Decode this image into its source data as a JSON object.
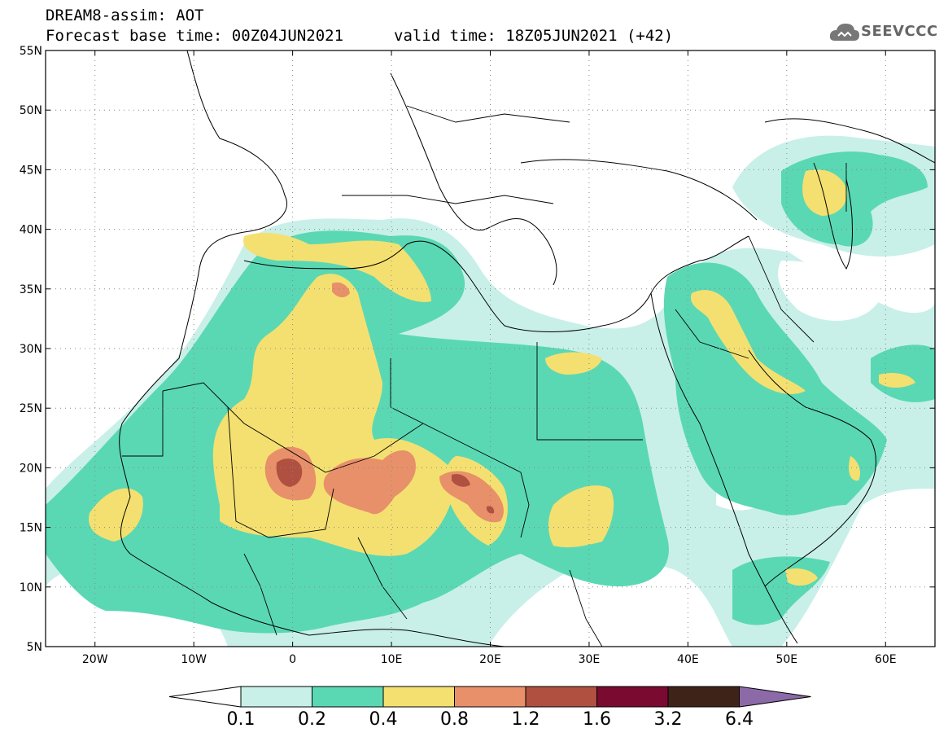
{
  "header": {
    "title": "DREAM8-assim: AOT",
    "base_time": "Forecast base time: 00Z04JUN2021",
    "valid_time": "valid time: 18Z05JUN2021 (+42)",
    "logo_text": "SEEVCCC"
  },
  "map": {
    "lon_range": [
      -25,
      65
    ],
    "lat_range": [
      5,
      55
    ],
    "lon_ticks": [
      {
        "value": -20,
        "label": "20W"
      },
      {
        "value": -10,
        "label": "10W"
      },
      {
        "value": 0,
        "label": "0"
      },
      {
        "value": 10,
        "label": "10E"
      },
      {
        "value": 20,
        "label": "20E"
      },
      {
        "value": 30,
        "label": "30E"
      },
      {
        "value": 40,
        "label": "40E"
      },
      {
        "value": 50,
        "label": "50E"
      },
      {
        "value": 60,
        "label": "60E"
      }
    ],
    "lat_ticks": [
      {
        "value": 55,
        "label": "55N"
      },
      {
        "value": 50,
        "label": "50N"
      },
      {
        "value": 45,
        "label": "45N"
      },
      {
        "value": 40,
        "label": "40N"
      },
      {
        "value": 35,
        "label": "35N"
      },
      {
        "value": 30,
        "label": "30N"
      },
      {
        "value": 25,
        "label": "25N"
      },
      {
        "value": 20,
        "label": "20N"
      },
      {
        "value": 15,
        "label": "15N"
      },
      {
        "value": 10,
        "label": "10N"
      },
      {
        "value": 5,
        "label": "5N"
      }
    ]
  },
  "colorbar": {
    "levels": [
      "0.1",
      "0.2",
      "0.4",
      "0.8",
      "1.2",
      "1.6",
      "3.2",
      "6.4"
    ],
    "colors": [
      "#c8f0e8",
      "#5ad8b4",
      "#f4e070",
      "#e8906a",
      "#b05040",
      "#7a0a30",
      "#3e2418"
    ],
    "under_color": "#ffffff",
    "over_color": "#8c6aa8"
  },
  "colors": {
    "c01": "#c8f0e8",
    "c02": "#5ad8b4",
    "c04": "#f4e070",
    "c08": "#e8906a",
    "c12": "#b05040"
  }
}
